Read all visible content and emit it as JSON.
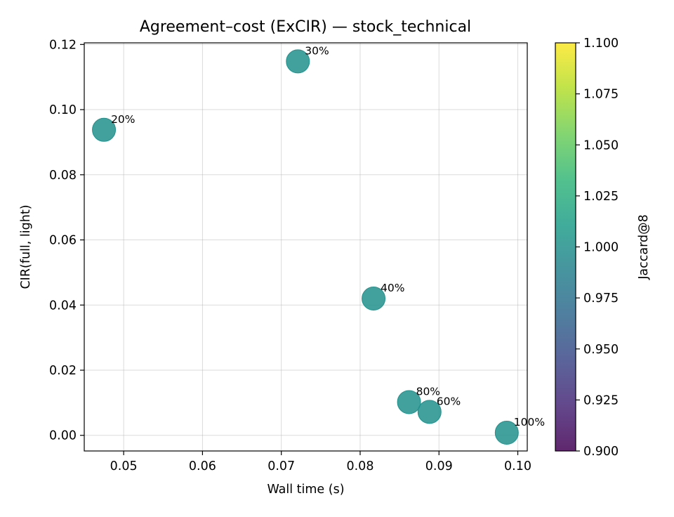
{
  "chart_data": {
    "type": "scatter",
    "title": "Agreement–cost (ExCIR) — stock_technical",
    "xlabel": "Wall time (s)",
    "ylabel": "CIR(full, light)",
    "xlim": [
      0.045,
      0.1012
    ],
    "ylim": [
      -0.0048,
      0.1205
    ],
    "xticks": [
      0.05,
      0.06,
      0.07,
      0.08,
      0.09,
      0.1
    ],
    "xtick_labels": [
      "0.05",
      "0.06",
      "0.07",
      "0.08",
      "0.09",
      "0.10"
    ],
    "yticks": [
      0.0,
      0.02,
      0.04,
      0.06,
      0.08,
      0.1,
      0.12
    ],
    "ytick_labels": [
      "0.00",
      "0.02",
      "0.04",
      "0.06",
      "0.08",
      "0.10",
      "0.12"
    ],
    "grid": true,
    "points": [
      {
        "x": 0.0475,
        "y": 0.0938,
        "c": 1.0,
        "label": "20%"
      },
      {
        "x": 0.0721,
        "y": 0.1148,
        "c": 1.0,
        "label": "30%"
      },
      {
        "x": 0.0817,
        "y": 0.042,
        "c": 1.0,
        "label": "40%"
      },
      {
        "x": 0.0888,
        "y": 0.0072,
        "c": 1.0,
        "label": "60%"
      },
      {
        "x": 0.0862,
        "y": 0.0102,
        "c": 1.0,
        "label": "80%"
      },
      {
        "x": 0.0986,
        "y": 0.0008,
        "c": 1.0,
        "label": "100%"
      }
    ],
    "point_color": "#21918c",
    "colorbar": {
      "label": "Jaccard@8",
      "colormap": "viridis",
      "range": [
        0.9,
        1.1
      ],
      "ticks": [
        0.9,
        0.925,
        0.95,
        0.975,
        1.0,
        1.025,
        1.05,
        1.075,
        1.1
      ],
      "tick_labels": [
        "0.900",
        "0.925",
        "0.950",
        "0.975",
        "1.000",
        "1.025",
        "1.050",
        "1.075",
        "1.100"
      ],
      "stops": [
        "#440154",
        "#482878",
        "#3e4989",
        "#31688e",
        "#26828e",
        "#1f9e89",
        "#35b779",
        "#6ece58",
        "#b5de2b",
        "#fde725"
      ]
    }
  }
}
